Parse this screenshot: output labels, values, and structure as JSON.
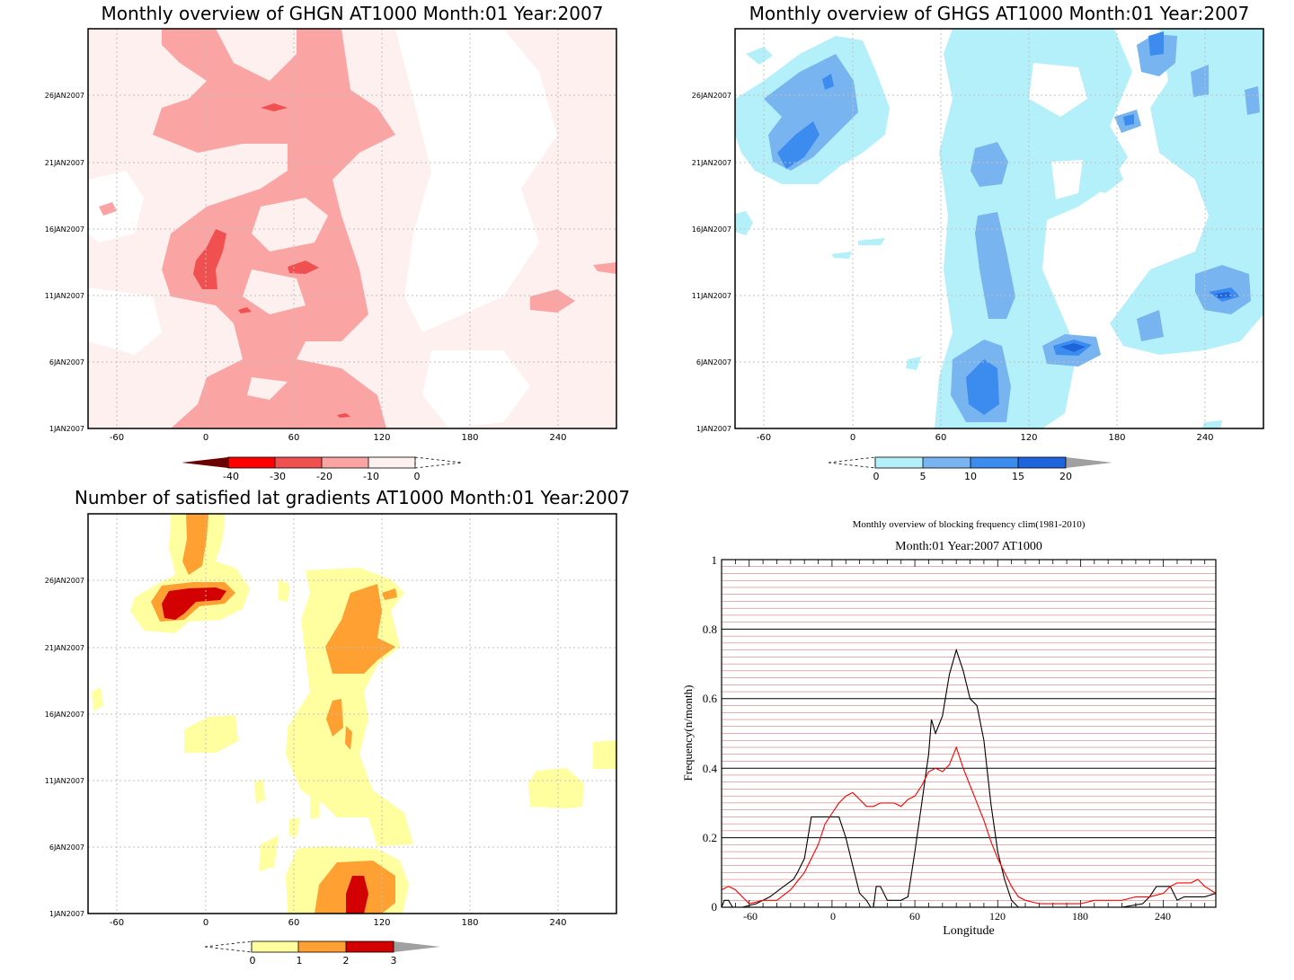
{
  "panels": {
    "ghgn": {
      "title": "Monthly overview of GHGN AT1000 Month:01 Year:2007",
      "x_ticks": [
        "-60",
        "0",
        "60",
        "120",
        "180",
        "240"
      ],
      "y_ticks": [
        "1JAN2007",
        "6JAN2007",
        "11JAN2007",
        "16JAN2007",
        "21JAN2007",
        "26JAN2007"
      ],
      "colorbar": {
        "labels": [
          "-40",
          "-30",
          "-20",
          "-10",
          "0"
        ],
        "colors": [
          "#e8b3b3",
          "#ff0000",
          "#f05050",
          "#fba4a4",
          "#fff0f0"
        ],
        "arrow_left": "#6b0000"
      }
    },
    "ghgs": {
      "title": "Monthly overview of GHGS AT1000 Month:01 Year:2007",
      "x_ticks": [
        "-60",
        "0",
        "60",
        "120",
        "180",
        "240"
      ],
      "y_ticks": [
        "1JAN2007",
        "6JAN2007",
        "11JAN2007",
        "16JAN2007",
        "21JAN2007",
        "26JAN2007"
      ],
      "colorbar": {
        "labels": [
          "0",
          "5",
          "10",
          "15",
          "20"
        ],
        "colors": [
          "#b4f0fa",
          "#78b4f0",
          "#3c8cf0",
          "#1e64dc"
        ],
        "arrow_right": "#a0a0a0"
      }
    },
    "lat": {
      "title": "Number of satisfied lat gradients AT1000 Month:01 Year:2007",
      "x_ticks": [
        "-60",
        "0",
        "60",
        "120",
        "180",
        "240"
      ],
      "y_ticks": [
        "1JAN2007",
        "6JAN2007",
        "11JAN2007",
        "16JAN2007",
        "21JAN2007",
        "26JAN2007"
      ],
      "colorbar": {
        "labels": [
          "0",
          "1",
          "2",
          "3"
        ],
        "colors": [
          "#ffffa0",
          "#ffa032",
          "#d20000"
        ],
        "arrow_right": "#a0a0a0"
      }
    },
    "freq": {
      "title": "Monthly overview of blocking frequency clim(1981-2010)",
      "subtitle": "Month:01 Year:2007  AT1000",
      "xlabel": "Longitude",
      "ylabel": "Frequency(n/month)",
      "x_ticks": [
        "-60",
        "0",
        "60",
        "120",
        "180",
        "240"
      ],
      "y_ticks": [
        "0",
        "0.2",
        "0.4",
        "0.6",
        "0.8",
        "1"
      ]
    }
  },
  "chart_data": [
    {
      "type": "heatmap",
      "title": "Monthly overview of GHGN AT1000 Month:01 Year:2007",
      "xlim": [
        -90,
        270
      ],
      "x_ticks": [
        -60,
        0,
        60,
        120,
        180,
        240
      ],
      "y_ticks": [
        "1JAN2007",
        "6JAN2007",
        "11JAN2007",
        "16JAN2007",
        "21JAN2007",
        "26JAN2007"
      ],
      "levels": [
        -40,
        -30,
        -20,
        -10,
        0
      ],
      "regions": [
        {
          "level": "<0",
          "lon": [
            -90,
            270
          ],
          "day": [
            1,
            31
          ],
          "note": "background"
        },
        {
          "level": "-20 to -10",
          "lon": [
            -25,
            120
          ],
          "day": [
            1,
            30
          ]
        },
        {
          "level": "-30 to -20",
          "lon": [
            -10,
            15
          ],
          "day": [
            11.5,
            15
          ]
        },
        {
          "level": "-30 to -20",
          "lon": [
            60,
            75
          ],
          "day": [
            12.5,
            13.5
          ]
        }
      ]
    },
    {
      "type": "heatmap",
      "title": "Monthly overview of GHGS AT1000 Month:01 Year:2007",
      "xlim": [
        -90,
        270
      ],
      "x_ticks": [
        -60,
        0,
        60,
        120,
        180,
        240
      ],
      "y_ticks": [
        "1JAN2007",
        "6JAN2007",
        "11JAN2007",
        "16JAN2007",
        "21JAN2007",
        "26JAN2007"
      ],
      "levels": [
        0,
        5,
        10,
        15,
        20
      ],
      "regions": [
        {
          "level": "0-5",
          "lon": [
            -90,
            30
          ],
          "day": [
            19,
            31
          ]
        },
        {
          "level": "5-10",
          "lon": [
            -45,
            0
          ],
          "day": [
            20.5,
            28
          ]
        },
        {
          "level": "10-15",
          "lon": [
            -40,
            -20
          ],
          "day": [
            21,
            24
          ]
        },
        {
          "level": "0-5",
          "lon": [
            60,
            150
          ],
          "day": [
            1,
            31
          ]
        },
        {
          "level": "5-10",
          "lon": [
            75,
            115
          ],
          "day": [
            1,
            17
          ]
        },
        {
          "level": "10-15",
          "lon": [
            80,
            105
          ],
          "day": [
            2,
            6
          ]
        },
        {
          "level": "10-15",
          "lon": [
            145,
            170
          ],
          "day": [
            6,
            7.5
          ]
        },
        {
          "level": "0-5",
          "lon": [
            175,
            270
          ],
          "day": [
            7,
            31
          ]
        },
        {
          "level": "5-10",
          "lon": [
            225,
            265
          ],
          "day": [
            10,
            13
          ]
        }
      ]
    },
    {
      "type": "heatmap",
      "title": "Number of satisfied lat gradients AT1000 Month:01 Year:2007",
      "xlim": [
        -90,
        270
      ],
      "x_ticks": [
        -60,
        0,
        60,
        120,
        180,
        240
      ],
      "y_ticks": [
        "1JAN2007",
        "6JAN2007",
        "11JAN2007",
        "16JAN2007",
        "21JAN2007",
        "26JAN2007"
      ],
      "levels": [
        0,
        1,
        2,
        3
      ],
      "regions": [
        {
          "level": "1-2",
          "lon": [
            -20,
            25
          ],
          "day": [
            27,
            31
          ]
        },
        {
          "level": "2-3",
          "lon": [
            -30,
            20
          ],
          "day": [
            23.5,
            26
          ]
        },
        {
          "level": "1-2",
          "lon": [
            80,
            115
          ],
          "day": [
            21,
            25.5
          ]
        },
        {
          "level": "1-2",
          "lon": [
            85,
            100
          ],
          "day": [
            14.5,
            17
          ]
        },
        {
          "level": "1-2",
          "lon": [
            75,
            130
          ],
          "day": [
            1,
            4
          ]
        },
        {
          "level": "2-3",
          "lon": [
            95,
            110
          ],
          "day": [
            1,
            3
          ]
        }
      ]
    },
    {
      "type": "line",
      "title": "Monthly overview of blocking frequency clim(1981-2010)",
      "xlabel": "Longitude",
      "ylabel": "Frequency(n/month)",
      "xlim": [
        -80,
        278
      ],
      "ylim": [
        0,
        1
      ],
      "grid": true,
      "series": [
        {
          "color": "#000000",
          "x": [
            -80,
            -78,
            -75,
            -72,
            -65,
            -55,
            -45,
            -35,
            -28,
            -25,
            -20,
            -15,
            -10,
            -5,
            0,
            5,
            10,
            15,
            20,
            25,
            28,
            30,
            32,
            35,
            40,
            45,
            50,
            55,
            60,
            65,
            70,
            72,
            75,
            80,
            85,
            90,
            95,
            100,
            105,
            110,
            115,
            120,
            125,
            130,
            135,
            140,
            150,
            180,
            210,
            225,
            230,
            235,
            240,
            245,
            250,
            255,
            260,
            265,
            270,
            278
          ],
          "y": [
            0,
            0.02,
            0.02,
            0,
            0,
            0.01,
            0.03,
            0.06,
            0.08,
            0.1,
            0.14,
            0.26,
            0.26,
            0.26,
            0.26,
            0.26,
            0.2,
            0.12,
            0.04,
            0.02,
            0,
            0,
            0.06,
            0.06,
            0.02,
            0.02,
            0.02,
            0.03,
            0.16,
            0.3,
            0.44,
            0.54,
            0.5,
            0.55,
            0.67,
            0.74,
            0.68,
            0.6,
            0.58,
            0.48,
            0.3,
            0.16,
            0.08,
            0.02,
            0,
            0,
            0,
            0,
            0,
            0.01,
            0.03,
            0.06,
            0.06,
            0.06,
            0.02,
            0.03,
            0.03,
            0.03,
            0.03,
            0.04
          ]
        },
        {
          "color": "#ff0000",
          "x": [
            -80,
            -75,
            -70,
            -65,
            -60,
            -50,
            -40,
            -30,
            -20,
            -10,
            -5,
            0,
            5,
            10,
            15,
            20,
            25,
            30,
            35,
            40,
            45,
            50,
            55,
            60,
            65,
            70,
            75,
            80,
            85,
            90,
            95,
            100,
            105,
            110,
            115,
            120,
            125,
            130,
            135,
            140,
            150,
            160,
            170,
            180,
            190,
            200,
            210,
            220,
            230,
            240,
            245,
            250,
            255,
            260,
            265,
            270,
            278
          ],
          "y": [
            0.05,
            0.06,
            0.05,
            0.03,
            0.01,
            0.02,
            0.02,
            0.05,
            0.1,
            0.18,
            0.24,
            0.27,
            0.3,
            0.32,
            0.33,
            0.31,
            0.29,
            0.29,
            0.3,
            0.3,
            0.3,
            0.29,
            0.31,
            0.32,
            0.35,
            0.39,
            0.4,
            0.39,
            0.41,
            0.46,
            0.4,
            0.35,
            0.3,
            0.25,
            0.19,
            0.14,
            0.1,
            0.06,
            0.03,
            0.02,
            0.01,
            0.01,
            0.01,
            0.01,
            0.02,
            0.02,
            0.02,
            0.03,
            0.03,
            0.04,
            0.06,
            0.07,
            0.07,
            0.07,
            0.08,
            0.06,
            0.04
          ]
        }
      ]
    }
  ]
}
